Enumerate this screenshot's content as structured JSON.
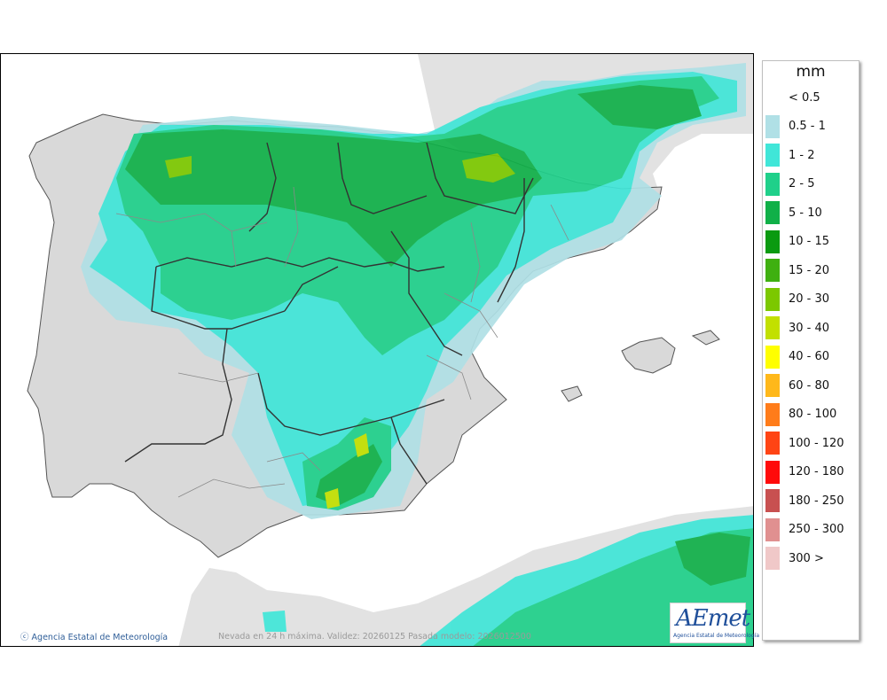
{
  "map": {
    "credit": "Agencia Estatal de Meteorología",
    "caption": "Nevada en 24 h máxima. Validez: 20260125 Pasada modelo: 2026012500",
    "logo": {
      "word": "AEmet",
      "subtitle": "Agencia Estatal de Meteorología"
    },
    "colors": {
      "land": "#d9d9d9",
      "sea": "#ffffff",
      "africa": "#e2e2e2",
      "border": "#333333",
      "province": "#8a8a8a"
    }
  },
  "legend": {
    "unit": "mm",
    "items": [
      {
        "label": "< 0.5",
        "color": "#ffffff"
      },
      {
        "label": "0.5 - 1",
        "color": "#b0e0e6"
      },
      {
        "label": "1 - 2",
        "color": "#40e6d8"
      },
      {
        "label": "2 - 5",
        "color": "#1fd08a"
      },
      {
        "label": "5 - 10",
        "color": "#10b048"
      },
      {
        "label": "10 - 15",
        "color": "#0a9a10"
      },
      {
        "label": "15 - 20",
        "color": "#3fb010"
      },
      {
        "label": "20 - 30",
        "color": "#7cc800"
      },
      {
        "label": "30 - 40",
        "color": "#c2e000"
      },
      {
        "label": "40 - 60",
        "color": "#ffff00"
      },
      {
        "label": "60 - 80",
        "color": "#ffb81a"
      },
      {
        "label": "80 - 100",
        "color": "#ff7c1a"
      },
      {
        "label": "100 - 120",
        "color": "#ff4414"
      },
      {
        "label": "120 - 180",
        "color": "#ff0a0a"
      },
      {
        "label": "180 - 250",
        "color": "#c85050"
      },
      {
        "label": "250 - 300",
        "color": "#e09090"
      },
      {
        "label": "300 >",
        "color": "#f0c8c8"
      }
    ]
  }
}
